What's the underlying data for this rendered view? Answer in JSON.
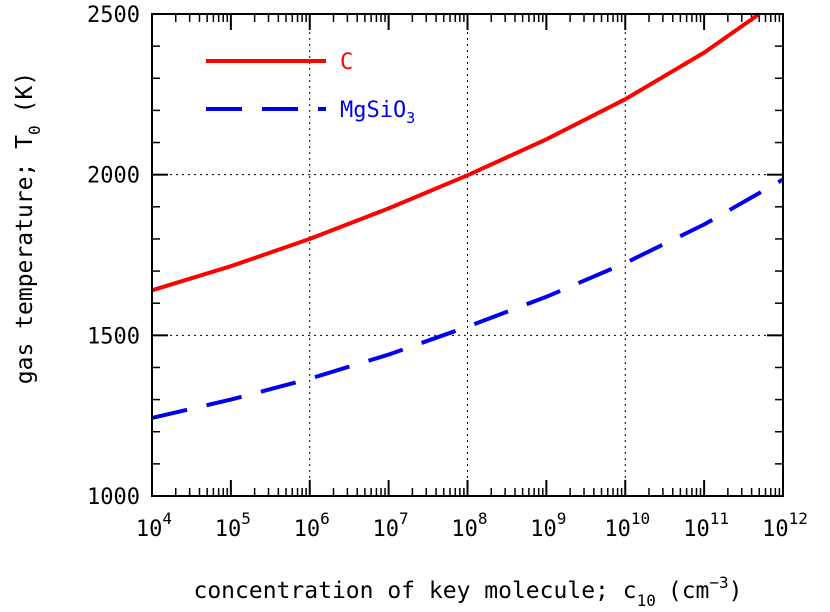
{
  "chart_data": {
    "type": "line",
    "title": "",
    "xlabel": {
      "text": "concentration of key molecule; c",
      "subscript": "10",
      "unit_prefix": "(cm",
      "unit_superscript": "−3",
      "unit_suffix": ")"
    },
    "ylabel": {
      "text": "gas temperature; T",
      "subscript": "0",
      "unit": "(K)"
    },
    "xscale": "log",
    "xlim": [
      10000,
      1000000000000
    ],
    "ylim": [
      1000,
      2500
    ],
    "grid": "dotted at x = 10^6, 10^8, 10^10 and y = 1500, 2000",
    "x_ticks": [
      {
        "base": "10",
        "exp": "4"
      },
      {
        "base": "10",
        "exp": "5"
      },
      {
        "base": "10",
        "exp": "6"
      },
      {
        "base": "10",
        "exp": "7"
      },
      {
        "base": "10",
        "exp": "8"
      },
      {
        "base": "10",
        "exp": "9"
      },
      {
        "base": "10",
        "exp": "10"
      },
      {
        "base": "10",
        "exp": "11"
      },
      {
        "base": "10",
        "exp": "12"
      }
    ],
    "y_ticks": [
      "1000",
      "1500",
      "2000",
      "2500"
    ],
    "legend_position": "top-left",
    "series": [
      {
        "name": "C",
        "color": "#ff0000",
        "style": "solid",
        "x": [
          10000,
          100000,
          1000000,
          10000000,
          100000000,
          1000000000,
          10000000000,
          100000000000,
          500000000000
        ],
        "y": [
          1640,
          1715,
          1800,
          1895,
          1998,
          2110,
          2235,
          2380,
          2500
        ]
      },
      {
        "name": "MgSiO",
        "name_subscript": "3",
        "color": "#0000ee",
        "style": "dashed",
        "x": [
          10000,
          100000,
          1000000,
          10000000,
          100000000,
          1000000000,
          10000000000,
          100000000000,
          1000000000000
        ],
        "y": [
          1243,
          1300,
          1365,
          1440,
          1527,
          1620,
          1725,
          1845,
          1985
        ]
      }
    ]
  }
}
